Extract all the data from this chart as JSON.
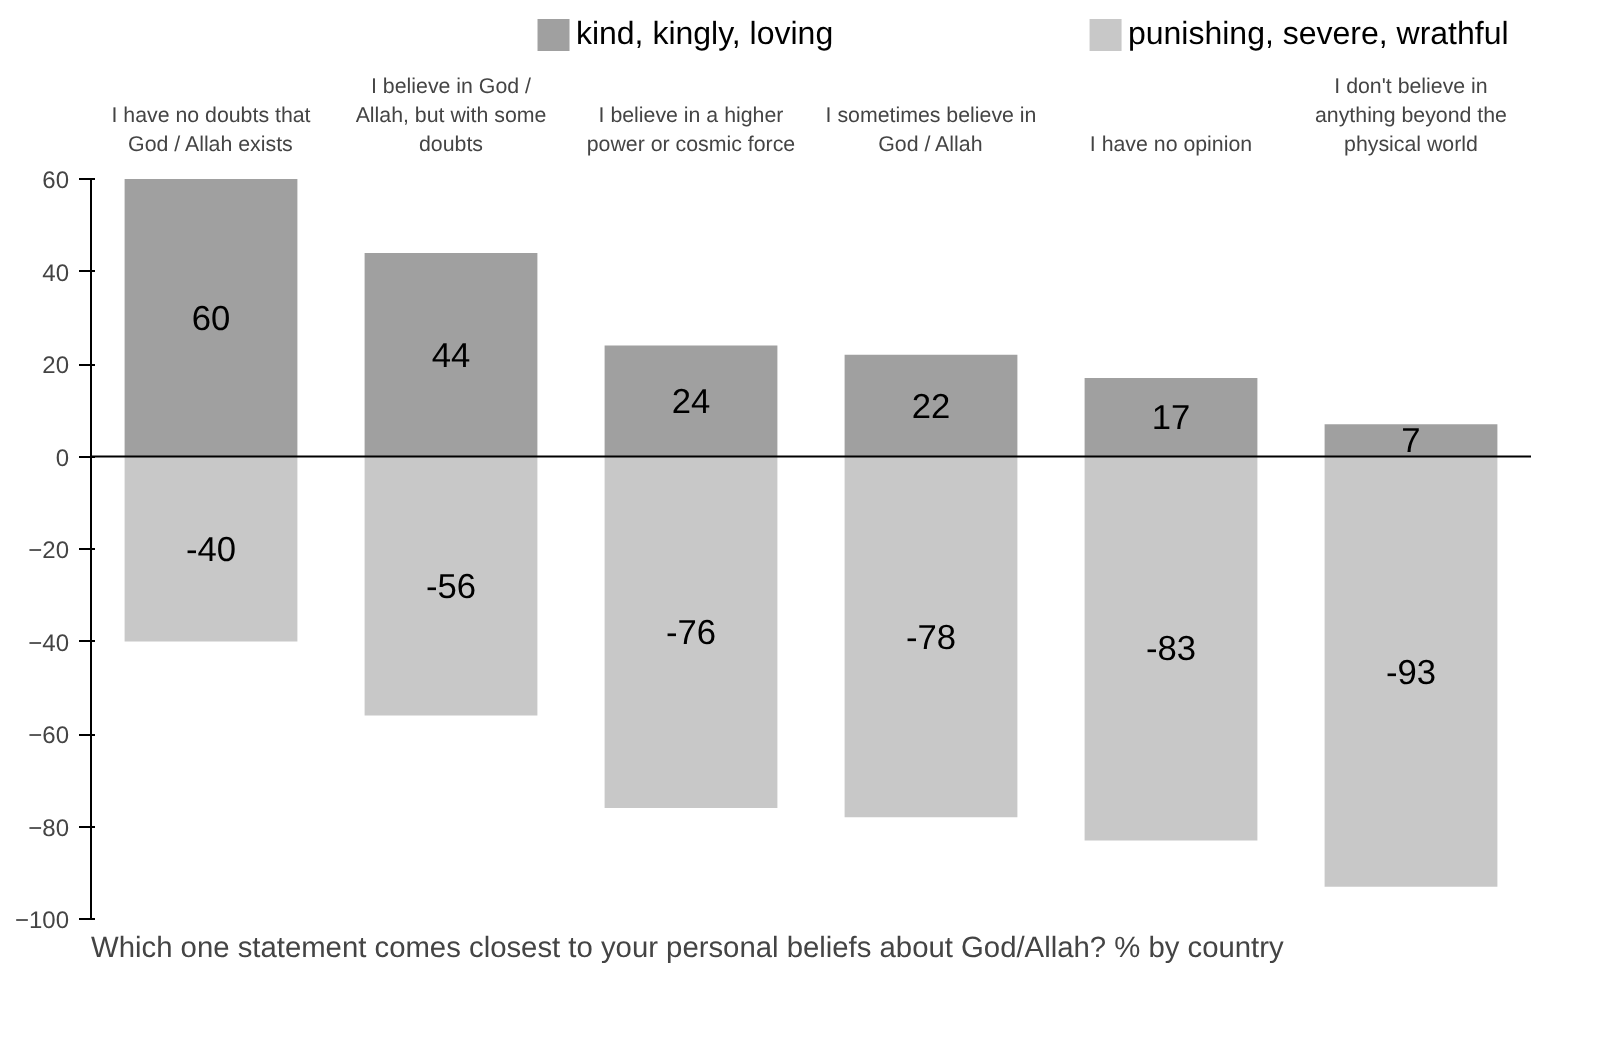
{
  "chart_data": {
    "type": "bar",
    "stacked": true,
    "categories": [
      "I have no doubts that God / Allah exists",
      "I believe in God / Allah, but with some doubts",
      "I believe in a higher power or cosmic force",
      "I sometimes believe in God / Allah",
      "I have no opinion",
      "I don't believe in anything beyond the physical world"
    ],
    "series": [
      {
        "name": "kind, kingly, loving",
        "color": "#a0a0a0",
        "values": [
          60,
          44,
          24,
          22,
          17,
          7
        ]
      },
      {
        "name": "punishing, severe, wrathful",
        "color": "#c8c8c8",
        "values": [
          -40,
          -56,
          -76,
          -78,
          -83,
          -93
        ]
      }
    ],
    "ylim": [
      -100,
      60
    ],
    "yticks": [
      -100,
      -80,
      -60,
      -40,
      -20,
      0,
      20,
      40,
      60
    ],
    "ref_lines": [
      {
        "axis": "y",
        "value": 0,
        "color": "#000000"
      }
    ],
    "data_labels": true,
    "legend": "top",
    "grid": false,
    "annotations": [
      "Which one statement comes closest to your personal beliefs about God/Allah? % by country"
    ]
  }
}
